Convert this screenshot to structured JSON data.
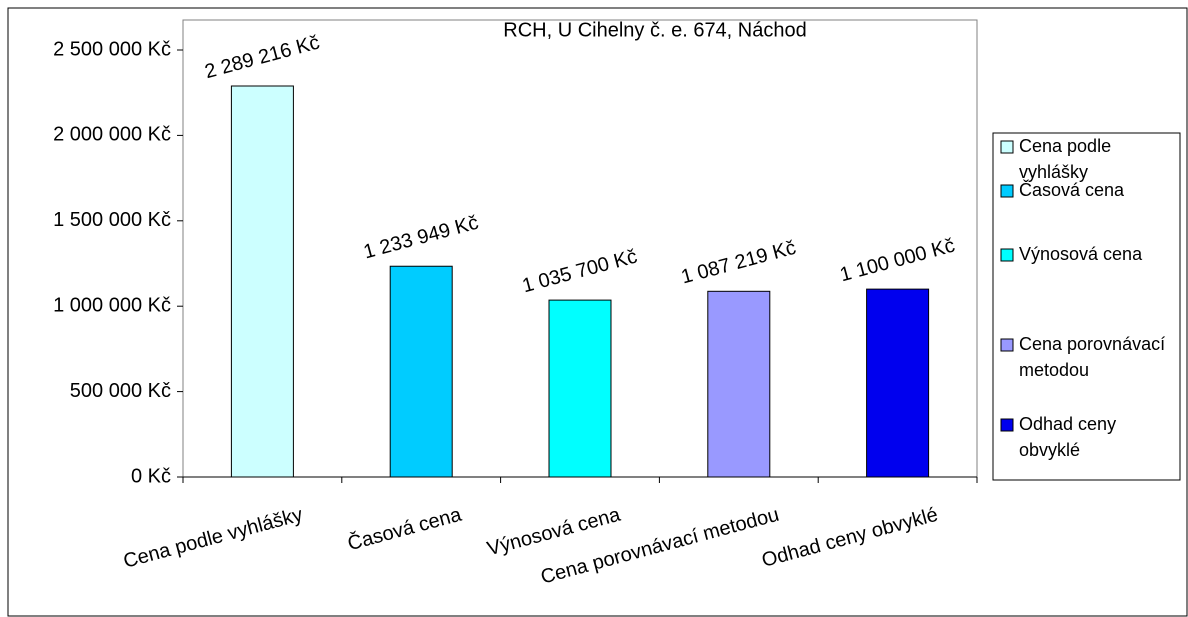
{
  "chart_data": {
    "type": "bar",
    "title": "RCH, U Cihelny č. e. 674, Náchod",
    "categories": [
      "Cena podle vyhlášky",
      "Časová cena",
      "Výnosová cena",
      "Cena porovnávací metodou",
      "Odhad ceny obvyklé"
    ],
    "values": [
      2289216,
      1233949,
      1035700,
      1087219,
      1100000
    ],
    "value_labels": [
      "2 289 216 Kč",
      "1 233 949 Kč",
      "1 035 700 Kč",
      "1 087 219 Kč",
      "1 100 000 Kč"
    ],
    "colors": [
      "#ccffff",
      "#00ccff",
      "#00ffff",
      "#9999ff",
      "#0000ee"
    ],
    "ylim": [
      0,
      2500000
    ],
    "yticks": [
      {
        "value": 0,
        "label": "0 Kč"
      },
      {
        "value": 500000,
        "label": "500 000 Kč"
      },
      {
        "value": 1000000,
        "label": "1 000 000 Kč"
      },
      {
        "value": 1500000,
        "label": "1 500 000 Kč"
      },
      {
        "value": 2000000,
        "label": "2 000 000 Kč"
      },
      {
        "value": 2500000,
        "label": "2 500 000 Kč"
      }
    ],
    "legend": "right"
  }
}
